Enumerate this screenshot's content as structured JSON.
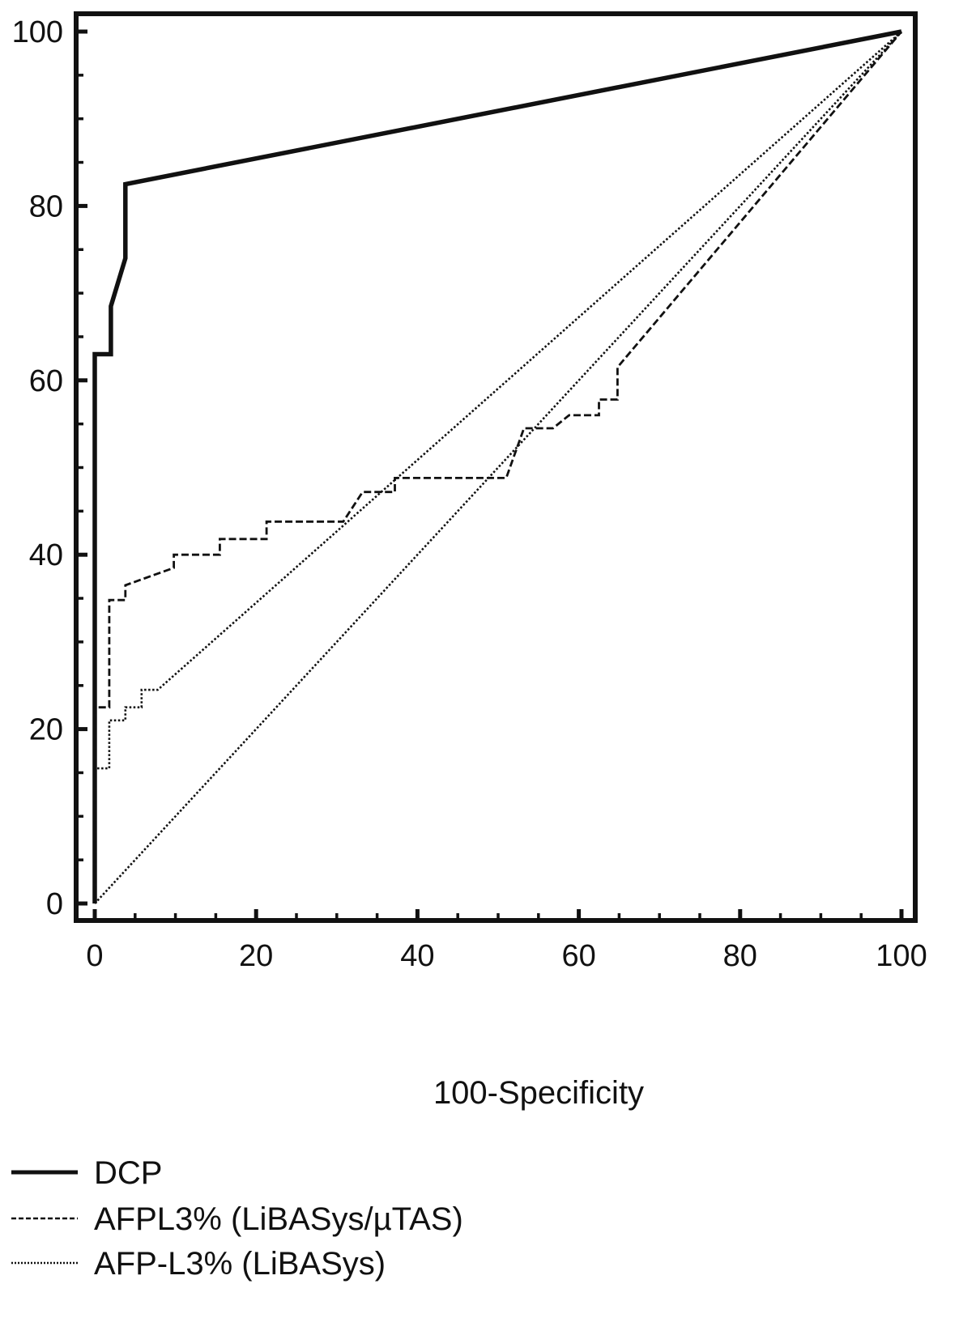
{
  "chart_data": {
    "type": "line",
    "title": "",
    "xlabel": "100-Specificity",
    "ylabel": "",
    "xlim": [
      0,
      100
    ],
    "ylim": [
      0,
      100
    ],
    "x_ticks": [
      "0",
      "20",
      "40",
      "60",
      "80",
      "100"
    ],
    "y_ticks": [
      "0",
      "20",
      "40",
      "60",
      "80",
      "100"
    ],
    "grid": false,
    "legend": {
      "placement": "bottom-left"
    },
    "series": [
      {
        "name": "DCP",
        "style": "solid",
        "points": [
          [
            0,
            0
          ],
          [
            0,
            63
          ],
          [
            2,
            63
          ],
          [
            2,
            68.5
          ],
          [
            3.8,
            74
          ],
          [
            3.8,
            82.5
          ],
          [
            100,
            100
          ]
        ]
      },
      {
        "name": "AFPL3% (LiBASys/µTAS)",
        "style": "dashed",
        "points": [
          [
            0,
            0
          ],
          [
            0,
            22.5
          ],
          [
            1.8,
            22.5
          ],
          [
            1.8,
            34.8
          ],
          [
            3.8,
            34.8
          ],
          [
            3.8,
            36.5
          ],
          [
            9.8,
            38.5
          ],
          [
            9.8,
            40
          ],
          [
            15.5,
            40
          ],
          [
            15.5,
            41.8
          ],
          [
            21.3,
            41.8
          ],
          [
            21.3,
            43.8
          ],
          [
            30.8,
            43.8
          ],
          [
            33.2,
            47.2
          ],
          [
            37.2,
            47.2
          ],
          [
            37.2,
            48.8
          ],
          [
            51,
            48.8
          ],
          [
            53.2,
            54.5
          ],
          [
            56.8,
            54.5
          ],
          [
            58.8,
            56
          ],
          [
            62.5,
            56
          ],
          [
            62.5,
            57.8
          ],
          [
            64.8,
            57.8
          ],
          [
            64.8,
            61.5
          ],
          [
            100,
            100
          ]
        ]
      },
      {
        "name": "AFP-L3% (LiBASys)",
        "style": "dotted",
        "points": [
          [
            0,
            0
          ],
          [
            0,
            15.5
          ],
          [
            1.8,
            15.5
          ],
          [
            1.8,
            21
          ],
          [
            3.8,
            21
          ],
          [
            3.8,
            22.5
          ],
          [
            5.8,
            22.5
          ],
          [
            5.8,
            24.5
          ],
          [
            7.8,
            24.5
          ],
          [
            100,
            100
          ]
        ]
      },
      {
        "name": "",
        "style": "dotted",
        "points": [
          [
            0,
            0
          ],
          [
            100,
            100
          ]
        ]
      }
    ]
  }
}
